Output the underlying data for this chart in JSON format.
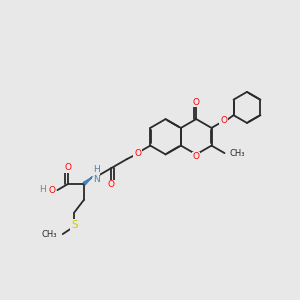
{
  "bg_color": "#e8e8e8",
  "bond_color": "#2a2a2a",
  "oxygen_color": "#ff0000",
  "nitrogen_color": "#4682b4",
  "sulfur_color": "#cccc00",
  "fig_size": [
    3.0,
    3.0
  ],
  "dpi": 100,
  "lw": 1.3,
  "fs": 6.5,
  "xlim": [
    0,
    10
  ],
  "ylim": [
    0,
    10
  ]
}
